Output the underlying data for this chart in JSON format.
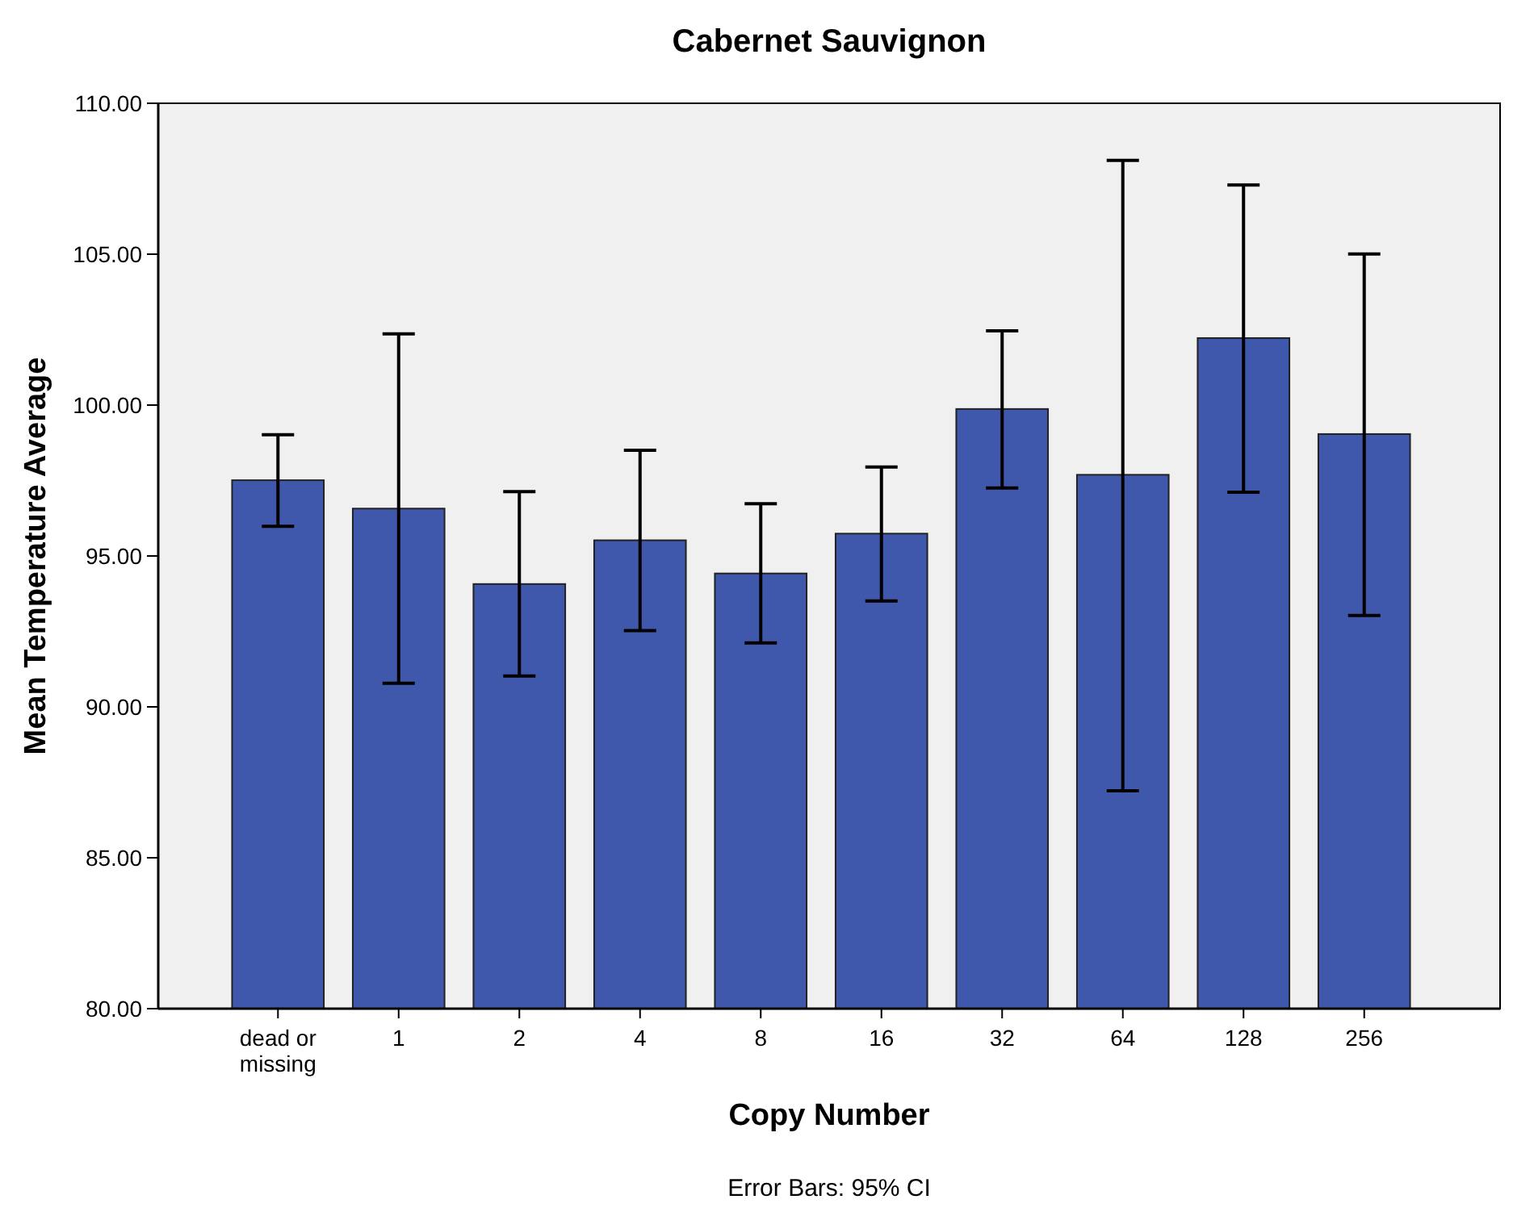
{
  "chart_data": {
    "type": "bar",
    "title": "Cabernet Sauvignon",
    "xlabel": "Copy Number",
    "ylabel": "Mean Temperature Average",
    "categories": [
      "dead or missing",
      "1",
      "2",
      "4",
      "8",
      "16",
      "32",
      "64",
      "128",
      "256"
    ],
    "values": [
      97.51,
      96.57,
      94.07,
      95.52,
      94.42,
      95.74,
      99.87,
      97.69,
      102.22,
      99.04
    ],
    "errors": [
      [
        95.98,
        99.02
      ],
      [
        90.78,
        102.36
      ],
      [
        91.02,
        97.13
      ],
      [
        92.53,
        98.5
      ],
      [
        92.12,
        96.73
      ],
      [
        93.51,
        97.95
      ],
      [
        97.25,
        102.46
      ],
      [
        87.22,
        108.11
      ],
      [
        97.11,
        107.29
      ],
      [
        93.03,
        105.01
      ]
    ],
    "color": "#3f58ac",
    "ylim": [
      80,
      110
    ],
    "yticks": [
      {
        "value": 80,
        "label": "80.00"
      },
      {
        "value": 85,
        "label": "85.00"
      },
      {
        "value": 90,
        "label": "90.00"
      },
      {
        "value": 95,
        "label": "95.00"
      },
      {
        "value": 100,
        "label": "100.00"
      },
      {
        "value": 105,
        "label": "105.00"
      },
      {
        "value": 110,
        "label": "110.00"
      }
    ],
    "annotations": [
      "Error Bars: 95% CI"
    ]
  }
}
